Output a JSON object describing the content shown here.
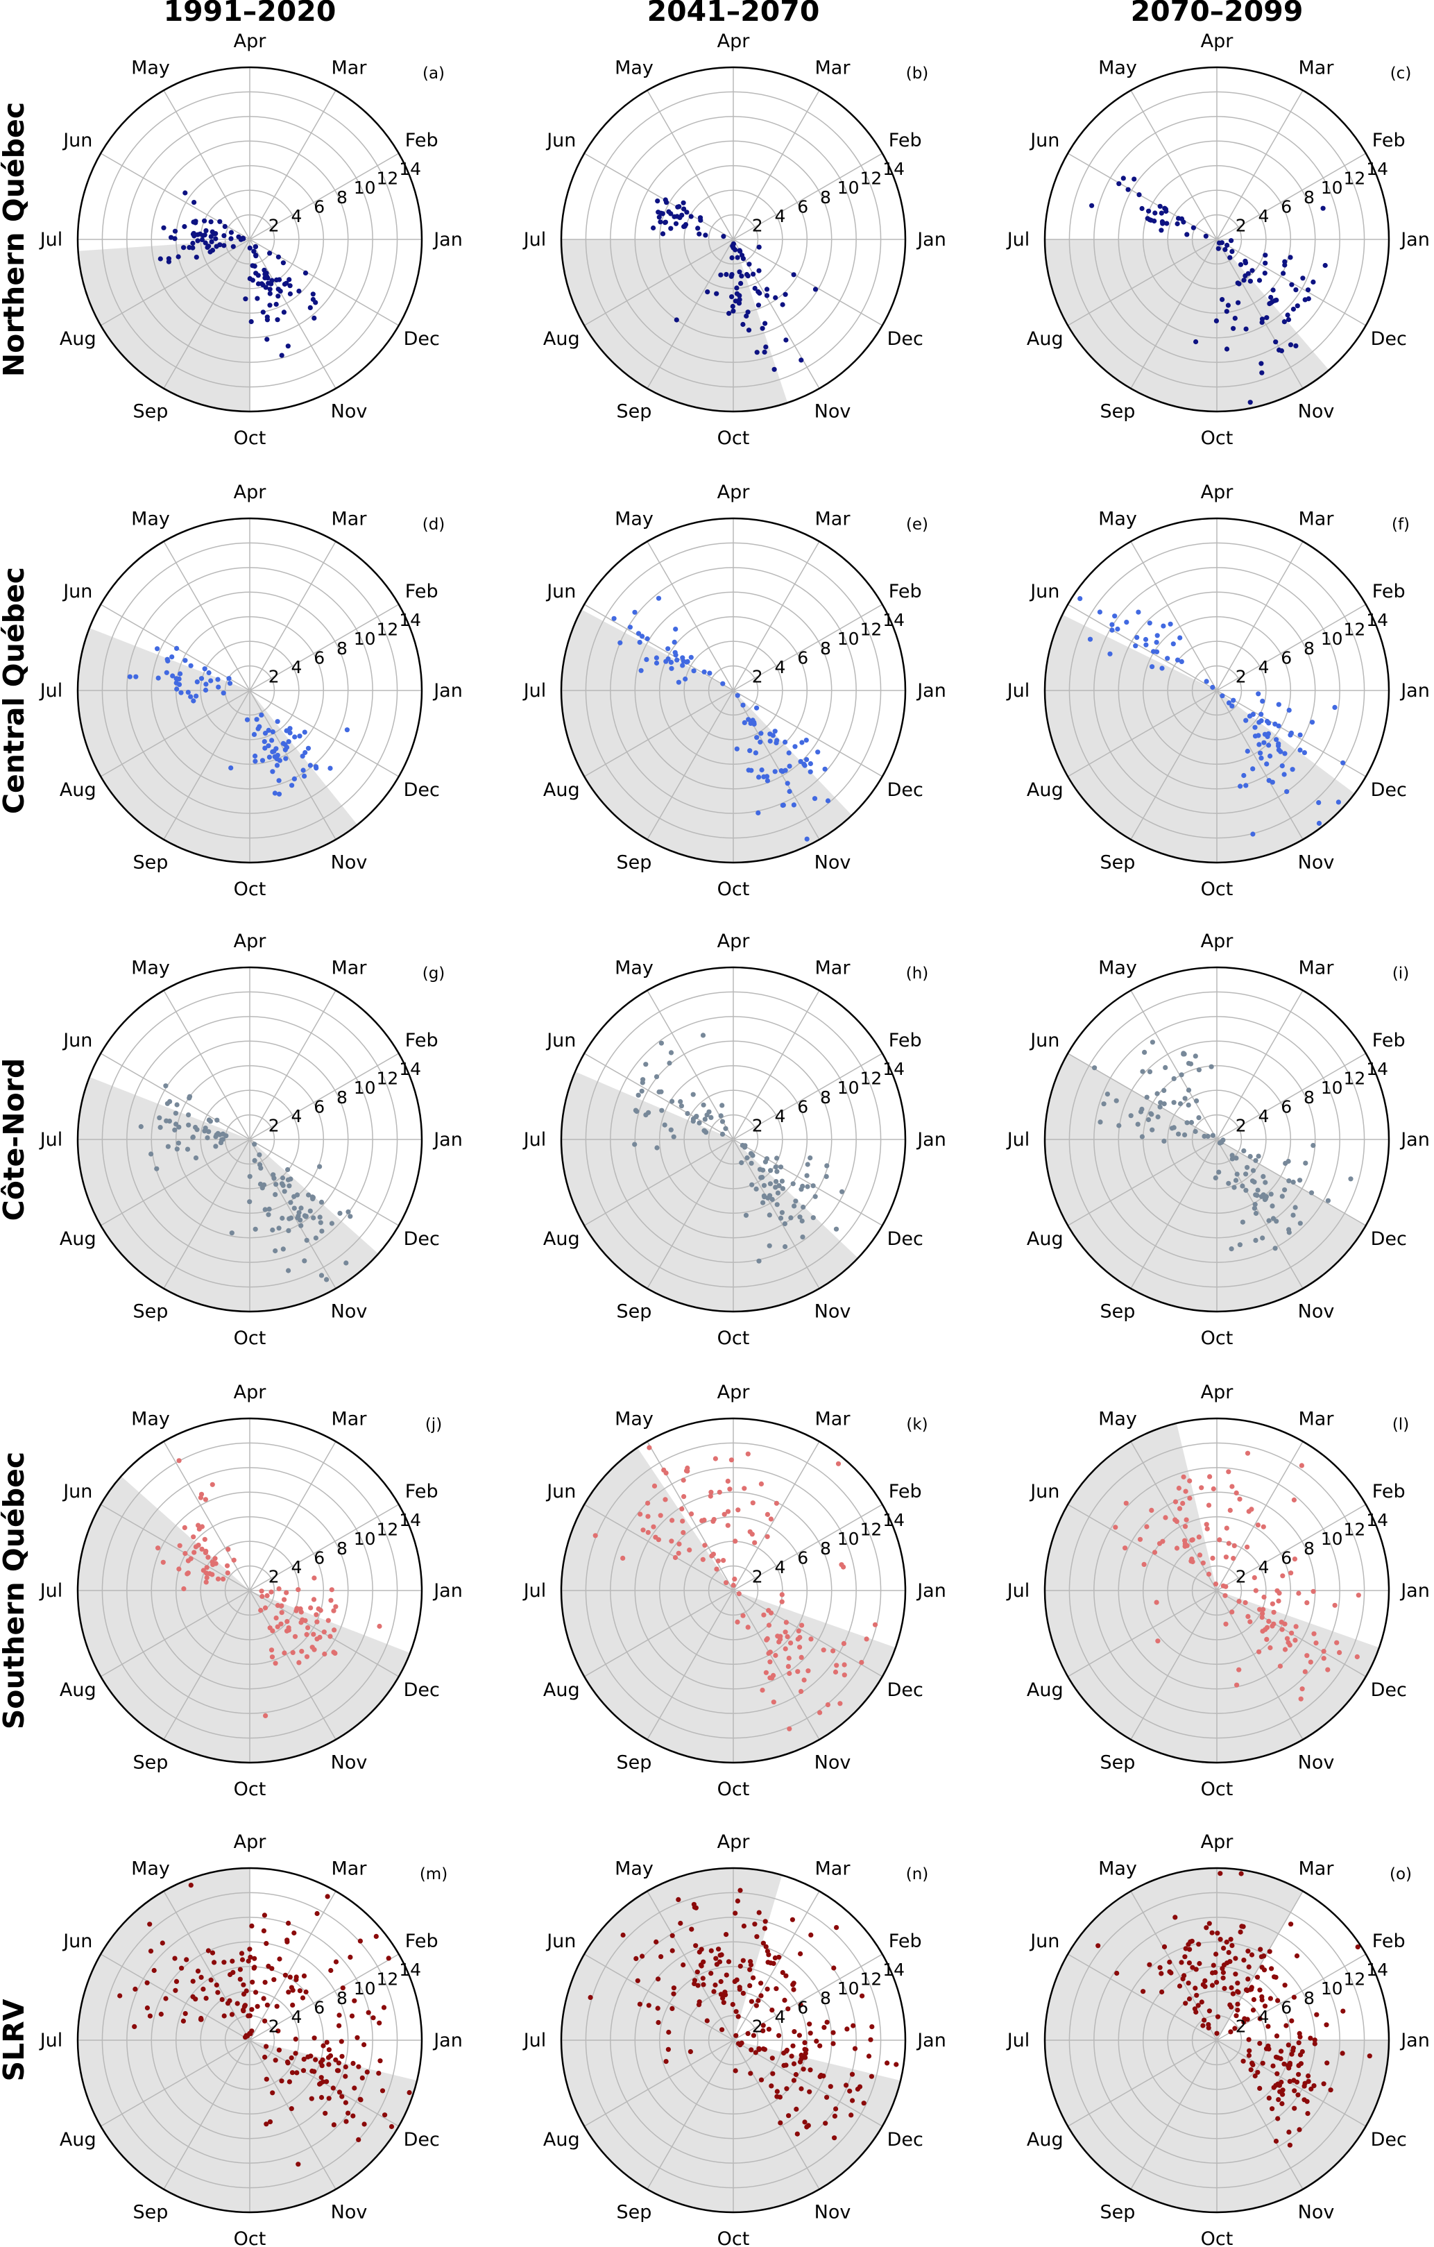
{
  "columns": [
    "1991–2020",
    "2041–2070",
    "2070–2099"
  ],
  "rows": [
    "Northern Québec",
    "Central Québec",
    "Côte-Nord",
    "Southern Québec",
    "SLRV"
  ],
  "chart_data": {
    "type": "scatter",
    "layout": "polar grid, 5 rows x 3 columns",
    "angular_axis": {
      "labels": [
        "Jan",
        "Feb",
        "Mar",
        "Apr",
        "May",
        "Jun",
        "Jul",
        "Aug",
        "Sep",
        "Oct",
        "Nov",
        "Dec"
      ],
      "direction": "counterclockwise",
      "zero_direction": "east (Jan)"
    },
    "radial_axis": {
      "ticks": [
        2,
        4,
        6,
        8,
        10,
        12,
        14
      ],
      "range": [
        0,
        14
      ]
    },
    "grid": true,
    "shaded_sector_color": "#e3e3e3",
    "row_colors": [
      "#0d1282",
      "#4169e1",
      "#778899",
      "#e07070",
      "#8b0a0a"
    ],
    "panels": [
      {
        "label": "(a)",
        "row": 0,
        "col": 0,
        "shade": [
          "Jul 5",
          "Oct 1"
        ],
        "clusters": [
          {
            "center": [
              "Jun 30",
              4
            ],
            "spread": [
              14,
              2.2
            ],
            "n": 55
          },
          {
            "center": [
              "Oct 26",
              4.5
            ],
            "spread": [
              16,
              2.0
            ],
            "n": 60
          }
        ]
      },
      {
        "label": "(b)",
        "row": 0,
        "col": 1,
        "shade": [
          "Jul 1",
          "Oct 20"
        ],
        "clusters": [
          {
            "center": [
              "Jun 12",
              4.5
            ],
            "spread": [
              10,
              1.6
            ],
            "n": 35
          },
          {
            "center": [
              "Oct 15",
              5
            ],
            "spread": [
              20,
              2.3
            ],
            "n": 60
          }
        ]
      },
      {
        "label": "(c)",
        "row": 0,
        "col": 2,
        "shade": [
          "Jul 1",
          "Nov 12"
        ],
        "clusters": [
          {
            "center": [
              "Jun 8",
              5
            ],
            "spread": [
              8,
              2.0
            ],
            "n": 30
          },
          {
            "center": [
              "Nov 20",
              5.5
            ],
            "spread": [
              18,
              2.4
            ],
            "n": 60
          },
          {
            "center": [
              "Oct 10",
              10
            ],
            "spread": [
              12,
              2.0
            ],
            "n": 8
          }
        ]
      },
      {
        "label": "(d)",
        "row": 1,
        "col": 0,
        "shade": [
          "Jun 10",
          "Nov 10"
        ],
        "clusters": [
          {
            "center": [
              "Jun 20",
              5
            ],
            "spread": [
              10,
              1.8
            ],
            "n": 35
          },
          {
            "center": [
              "Oct 28",
              5.5
            ],
            "spread": [
              14,
              2.0
            ],
            "n": 55
          }
        ]
      },
      {
        "label": "(e)",
        "row": 1,
        "col": 1,
        "shade": [
          "Jun 3",
          "Nov 15"
        ],
        "clusters": [
          {
            "center": [
              "Jun 1",
              6
            ],
            "spread": [
              7,
              2.6
            ],
            "n": 35
          },
          {
            "center": [
              "Nov 5",
              6.5
            ],
            "spread": [
              12,
              2.8
            ],
            "n": 55
          }
        ]
      },
      {
        "label": "(f)",
        "row": 1,
        "col": 2,
        "shade": [
          "Jun 5",
          "Nov 25"
        ],
        "clusters": [
          {
            "center": [
              "May 25",
              7
            ],
            "spread": [
              10,
              2.8
            ],
            "n": 30
          },
          {
            "center": [
              "Nov 15",
              6.5
            ],
            "spread": [
              15,
              2.8
            ],
            "n": 60
          }
        ]
      },
      {
        "label": "(g)",
        "row": 2,
        "col": 0,
        "shade": [
          "Jun 10",
          "Nov 20"
        ],
        "clusters": [
          {
            "center": [
              "Jun 20",
              5
            ],
            "spread": [
              12,
              2.0
            ],
            "n": 45
          },
          {
            "center": [
              "Nov 1",
              7
            ],
            "spread": [
              14,
              3.2
            ],
            "n": 70
          }
        ]
      },
      {
        "label": "(h)",
        "row": 2,
        "col": 1,
        "shade": [
          "Jun 8",
          "Nov 18"
        ],
        "clusters": [
          {
            "center": [
              "May 30",
              6
            ],
            "spread": [
              16,
              2.6
            ],
            "n": 45
          },
          {
            "center": [
              "Nov 10",
              5.5
            ],
            "spread": [
              16,
              2.4
            ],
            "n": 65
          }
        ]
      },
      {
        "label": "(i)",
        "row": 2,
        "col": 2,
        "shade": [
          "Jun 1",
          "Dec 1"
        ],
        "clusters": [
          {
            "center": [
              "May 25",
              6
            ],
            "spread": [
              20,
              2.6
            ],
            "n": 55
          },
          {
            "center": [
              "Nov 15",
              6
            ],
            "spread": [
              18,
              2.6
            ],
            "n": 65
          }
        ]
      },
      {
        "label": "(j)",
        "row": 3,
        "col": 0,
        "shade": [
          "May 20",
          "Dec 10"
        ],
        "clusters": [
          {
            "center": [
              "May 25",
              5
            ],
            "spread": [
              16,
              2.0
            ],
            "n": 45
          },
          {
            "center": [
              "Nov 25",
              5.5
            ],
            "spread": [
              20,
              2.2
            ],
            "n": 65
          }
        ]
      },
      {
        "label": "(k)",
        "row": 3,
        "col": 1,
        "shade": [
          "May 5",
          "Dec 12"
        ],
        "clusters": [
          {
            "center": [
              "Apr 25",
              6.5
            ],
            "spread": [
              30,
              2.8
            ],
            "n": 70
          },
          {
            "center": [
              "Nov 15",
              7
            ],
            "spread": [
              18,
              3.0
            ],
            "n": 60
          }
        ]
      },
      {
        "label": "(l)",
        "row": 3,
        "col": 2,
        "shade": [
          "Apr 15",
          "Dec 12"
        ],
        "clusters": [
          {
            "center": [
              "Apr 15",
              6.5
            ],
            "spread": [
              35,
              2.8
            ],
            "n": 70
          },
          {
            "center": [
              "Dec 1",
              6.5
            ],
            "spread": [
              18,
              2.8
            ],
            "n": 60
          }
        ]
      },
      {
        "label": "(m)",
        "row": 4,
        "col": 0,
        "shade": [
          "Apr 1",
          "Dec 18"
        ],
        "clusters": [
          {
            "center": [
              "Apr 10",
              6.5
            ],
            "spread": [
              40,
              3.0
            ],
            "n": 120
          },
          {
            "center": [
              "Nov 30",
              7
            ],
            "spread": [
              20,
              3.0
            ],
            "n": 80
          }
        ]
      },
      {
        "label": "(n)",
        "row": 4,
        "col": 1,
        "shade": [
          "Mar 15",
          "Dec 18"
        ],
        "clusters": [
          {
            "center": [
              "Mar 25",
              6.5
            ],
            "spread": [
              40,
              2.8
            ],
            "n": 130
          },
          {
            "center": [
              "Dec 5",
              7
            ],
            "spread": [
              18,
              3.0
            ],
            "n": 80
          }
        ]
      },
      {
        "label": "(o)",
        "row": 4,
        "col": 2,
        "shade": [
          "Mar 1",
          "Jan 1"
        ],
        "clusters": [
          {
            "center": [
              "Mar 20",
              6.5
            ],
            "spread": [
              40,
              2.8
            ],
            "n": 130
          },
          {
            "center": [
              "Dec 10",
              6.5
            ],
            "spread": [
              20,
              2.6
            ],
            "n": 80
          }
        ]
      }
    ]
  }
}
